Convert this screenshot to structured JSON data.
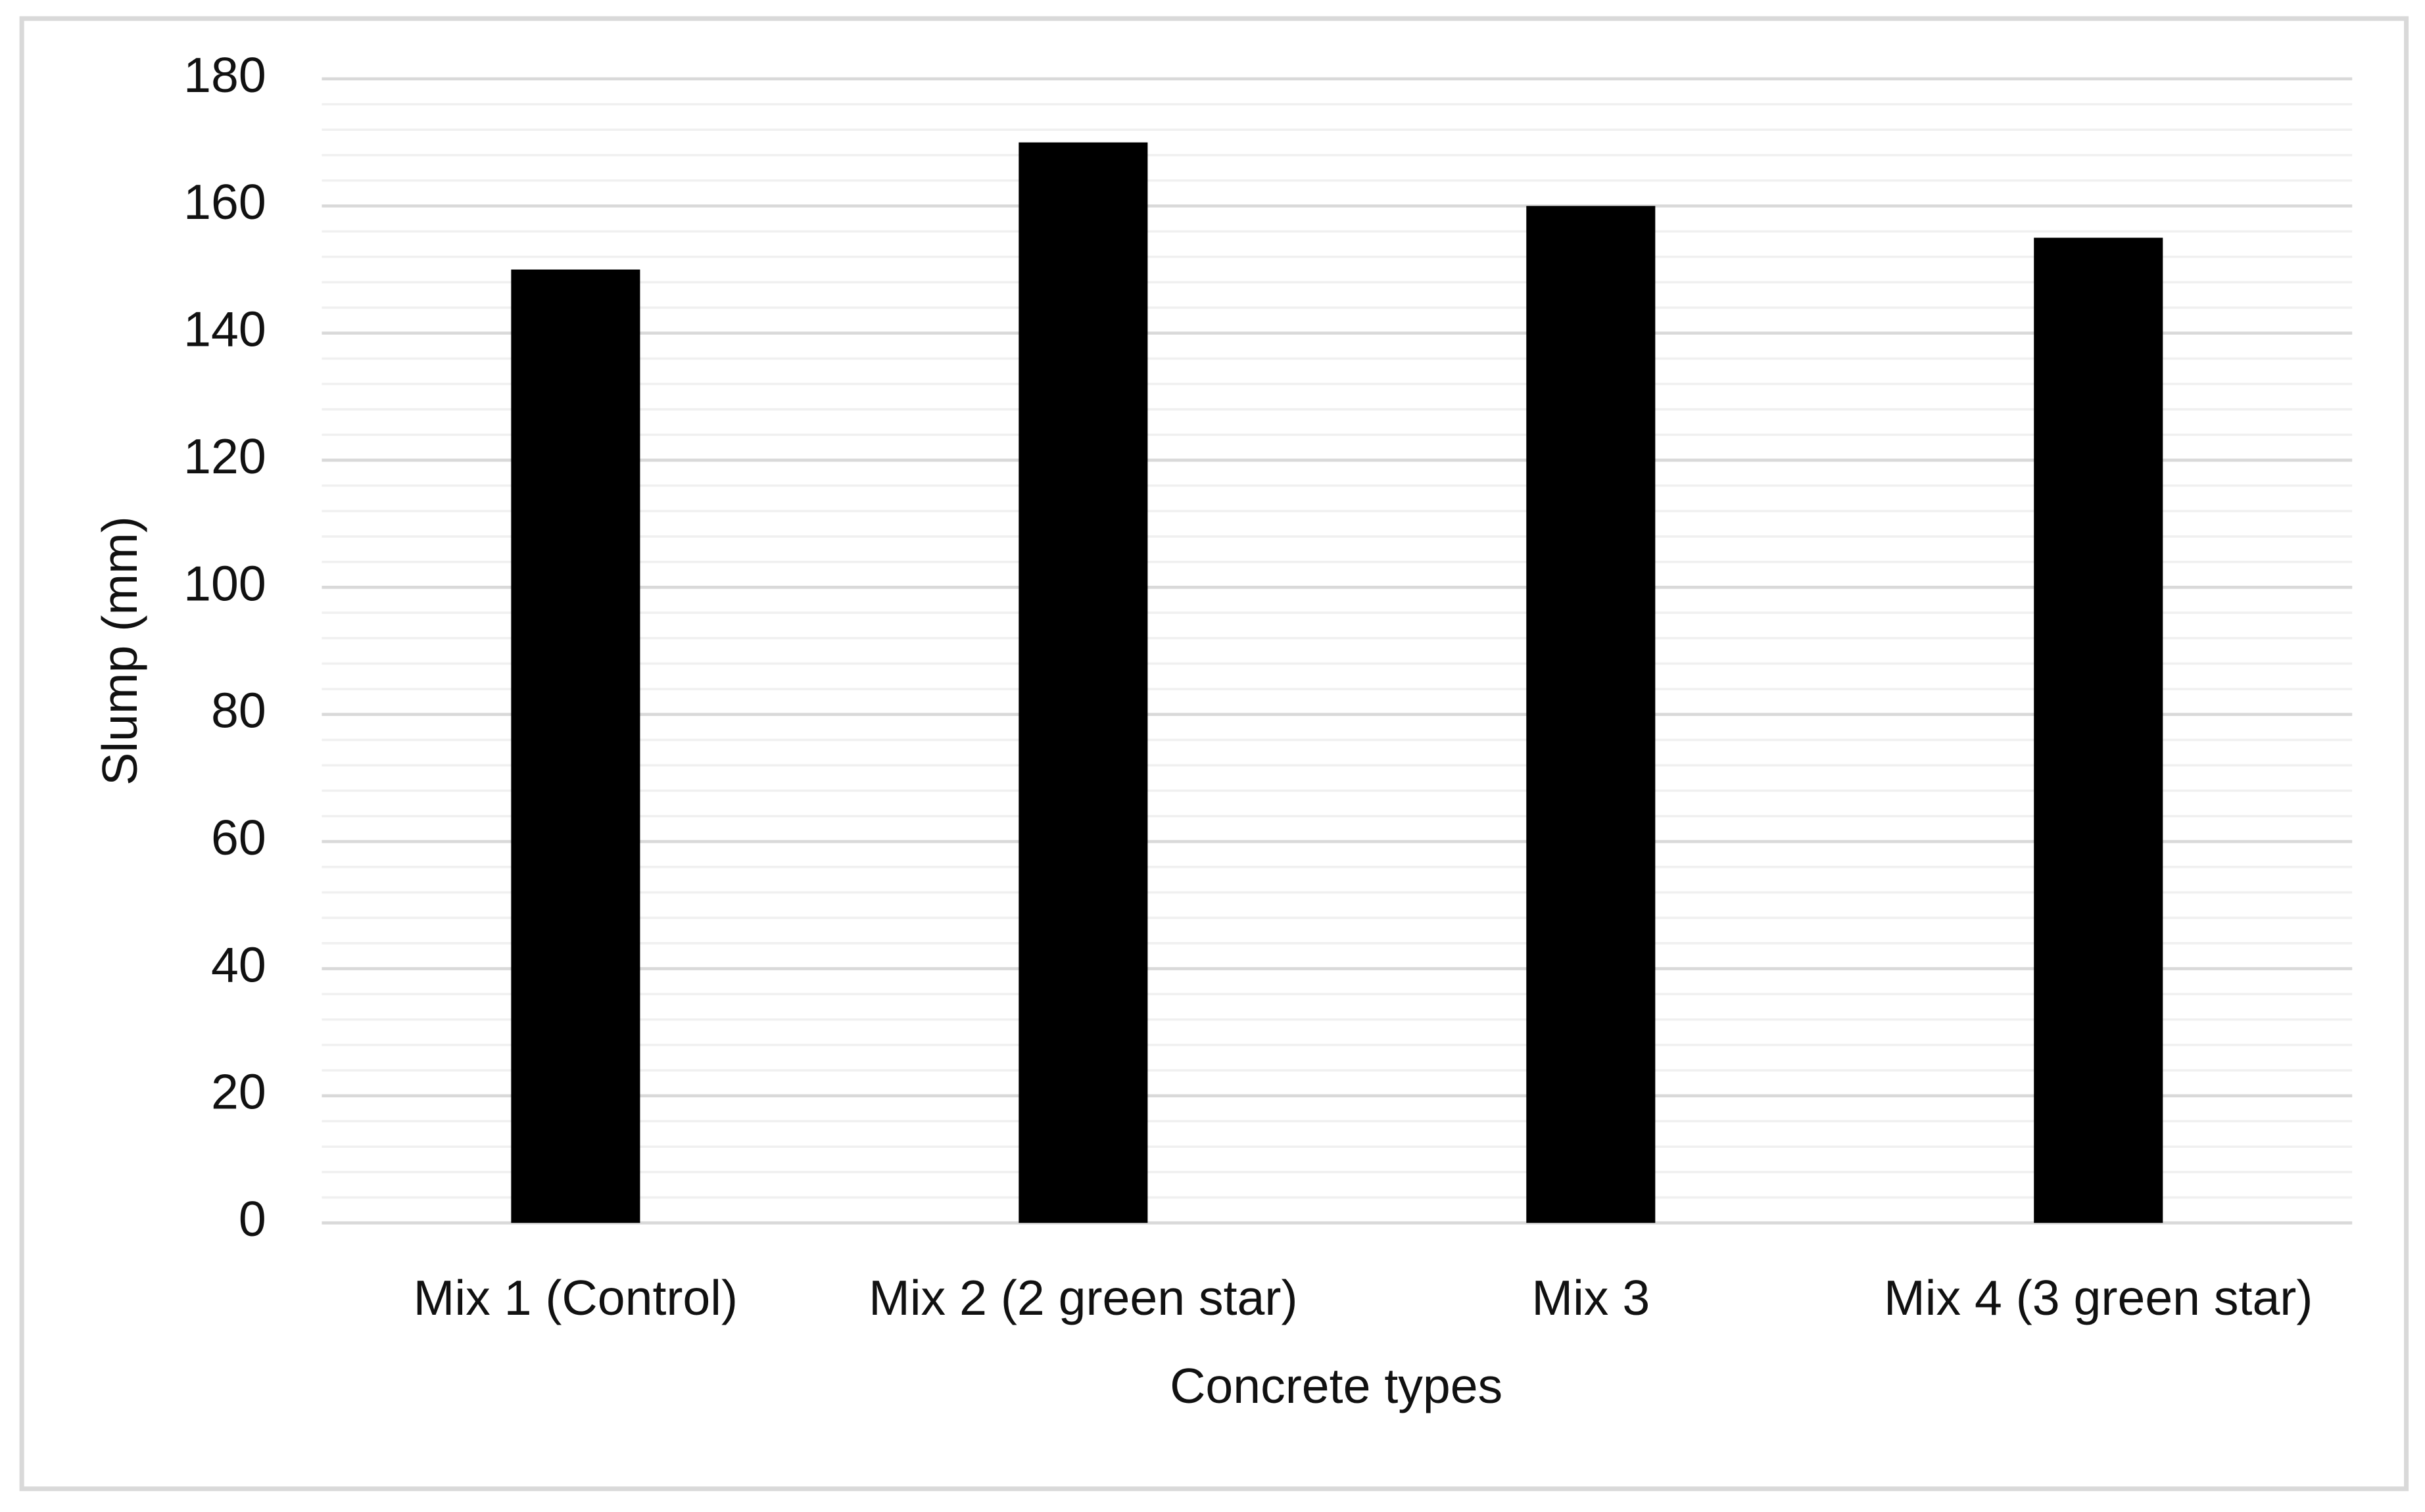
{
  "chart_data": {
    "type": "bar",
    "x_label": "Concrete types",
    "y_label": "Slump (mm)",
    "categories": [
      "Mix 1 (Control)",
      "Mix 2 (2 green star)",
      "Mix 3",
      "Mix 4 (3 green star)"
    ],
    "values": [
      150,
      170,
      160,
      155
    ],
    "color": "#000000",
    "ylim": [
      0,
      180
    ],
    "yticks": [
      0,
      20,
      40,
      60,
      80,
      100,
      120,
      140,
      160,
      180
    ],
    "minor_yticks": [
      4,
      8,
      12,
      16,
      24,
      28,
      32,
      36,
      44,
      48,
      52,
      56,
      64,
      68,
      72,
      76,
      84,
      88,
      92,
      96,
      104,
      108,
      112,
      116,
      124,
      128,
      132,
      136,
      144,
      148,
      152,
      156,
      164,
      168,
      172,
      176
    ],
    "grid": true,
    "minor_grid": true
  }
}
